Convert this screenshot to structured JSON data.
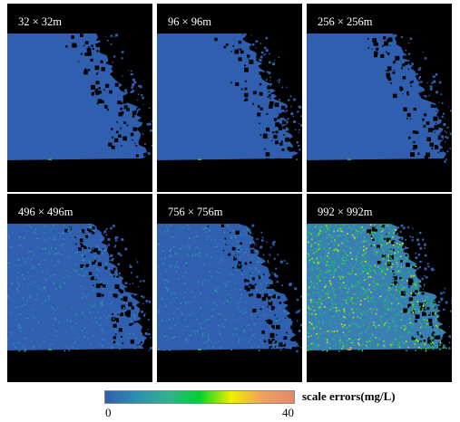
{
  "panels": [
    {
      "id": "p1",
      "label": "32 × 32m",
      "error_level": 0.0
    },
    {
      "id": "p2",
      "label": "96 × 96m",
      "error_level": 0.0
    },
    {
      "id": "p3",
      "label": "256 × 256m",
      "error_level": 0.0
    },
    {
      "id": "p4",
      "label": "496 × 496m",
      "error_level": 0.15
    },
    {
      "id": "p5",
      "label": "756 × 756m",
      "error_level": 0.15
    },
    {
      "id": "p6",
      "label": "992 × 992m",
      "error_level": 0.45
    }
  ],
  "colorbar": {
    "title": "scale errors(mg/L)",
    "min_label": "0",
    "max_label": "40",
    "min": 0,
    "max": 40,
    "stops": [
      "#2f5fae",
      "#2f8fb0",
      "#35b08c",
      "#00d030",
      "#f0f000",
      "#f0a060",
      "#e08a6a"
    ]
  }
}
